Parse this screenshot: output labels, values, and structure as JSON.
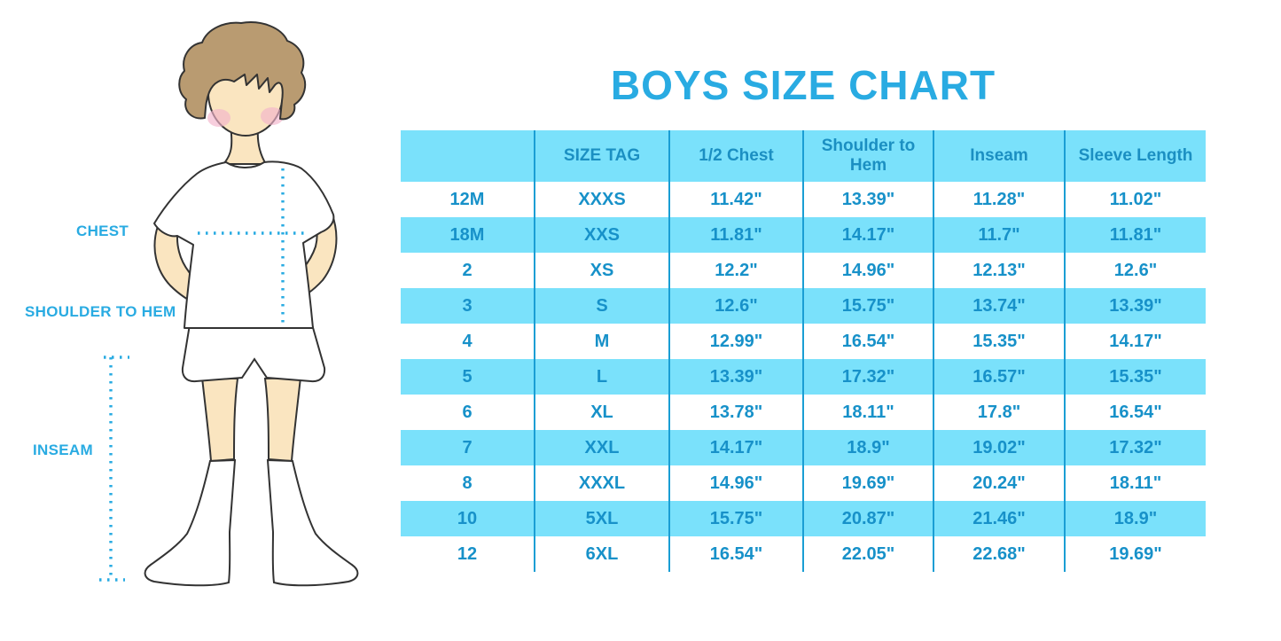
{
  "title": "BOYS SIZE CHART",
  "illustration": {
    "name": "boy-measurement-figure",
    "labels": {
      "chest": "CHEST",
      "shoulder_to_hem": "SHOULDER TO HEM",
      "inseam": "INSEAM"
    }
  },
  "colors": {
    "accent_blue": "#29abe2",
    "table_text_blue": "#1791c9",
    "band_cyan": "#7ae1fb",
    "divider_blue": "#1a9ed4",
    "skin": "#fae5c0",
    "hair_brown": "#b99b71",
    "cheek_pink": "#f3b3cb",
    "outline": "#333333"
  },
  "chart_data": {
    "type": "table",
    "title": "BOYS SIZE CHART",
    "columns": [
      "",
      "SIZE TAG",
      "1/2 Chest",
      "Shoulder to Hem",
      "Inseam",
      "Sleeve Length"
    ],
    "rows": [
      [
        "12M",
        "XXXS",
        "11.42\"",
        "13.39\"",
        "11.28\"",
        "11.02\""
      ],
      [
        "18M",
        "XXS",
        "11.81\"",
        "14.17\"",
        "11.7\"",
        "11.81\""
      ],
      [
        "2",
        "XS",
        "12.2\"",
        "14.96\"",
        "12.13\"",
        "12.6\""
      ],
      [
        "3",
        "S",
        "12.6\"",
        "15.75\"",
        "13.74\"",
        "13.39\""
      ],
      [
        "4",
        "M",
        "12.99\"",
        "16.54\"",
        "15.35\"",
        "14.17\""
      ],
      [
        "5",
        "L",
        "13.39\"",
        "17.32\"",
        "16.57\"",
        "15.35\""
      ],
      [
        "6",
        "XL",
        "13.78\"",
        "18.11\"",
        "17.8\"",
        "16.54\""
      ],
      [
        "7",
        "XXL",
        "14.17\"",
        "18.9\"",
        "19.02\"",
        "17.32\""
      ],
      [
        "8",
        "XXXL",
        "14.96\"",
        "19.69\"",
        "20.24\"",
        "18.11\""
      ],
      [
        "10",
        "5XL",
        "15.75\"",
        "20.87\"",
        "21.46\"",
        "18.9\""
      ],
      [
        "12",
        "6XL",
        "16.54\"",
        "22.05\"",
        "22.68\"",
        "19.69\""
      ]
    ]
  }
}
